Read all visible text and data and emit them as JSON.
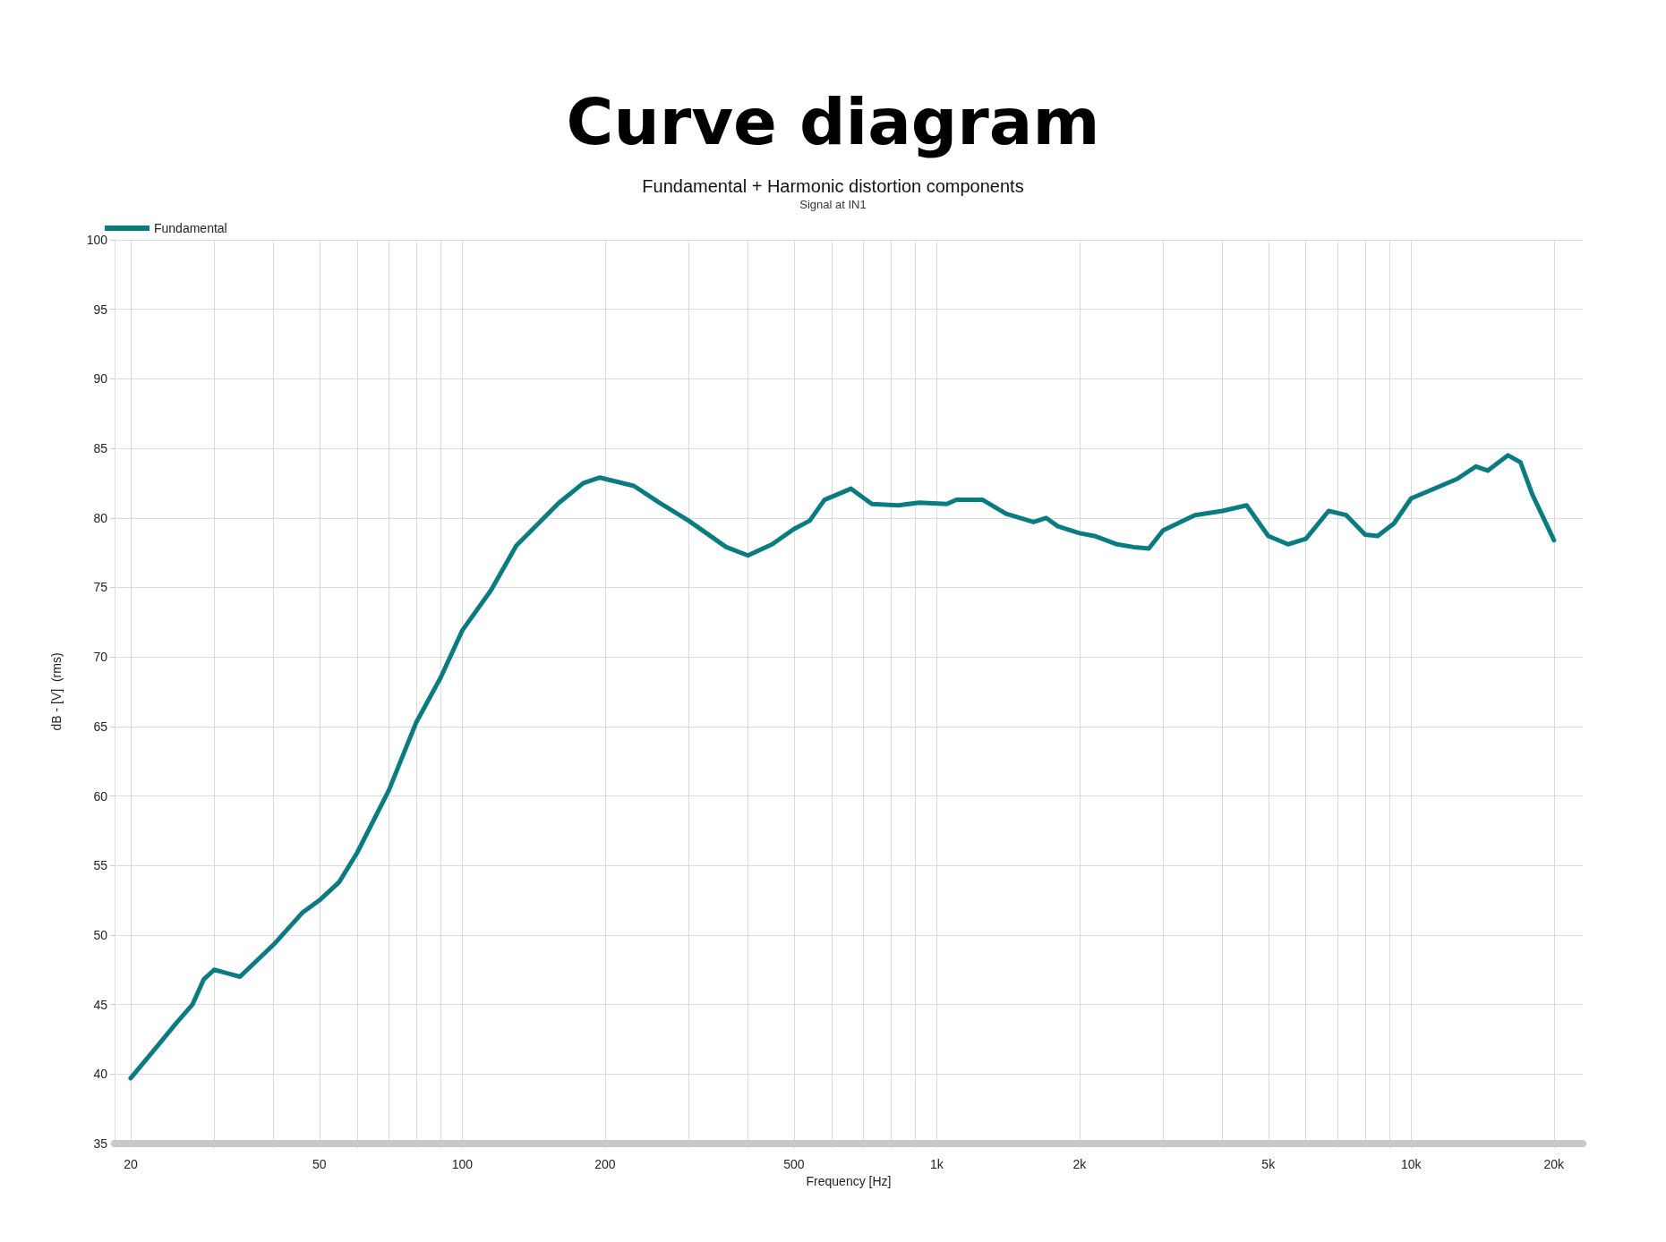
{
  "chart_data": {
    "type": "line",
    "title": "Curve diagram",
    "subtitle": "Fundamental + Harmonic distortion components",
    "annotations": [
      "Signal at IN1"
    ],
    "xlabel": "Frequency [Hz]",
    "ylabel": "dB - [V]  (rms)",
    "log": "x",
    "grid": true,
    "legend": "top left",
    "marker": "none",
    "line_style": "solid",
    "xlim": [
      18.5,
      23000
    ],
    "ylim": [
      35,
      100
    ],
    "xticks": [
      20,
      {
        "value": 30,
        "label": null
      },
      {
        "value": 40,
        "label": null
      },
      50,
      {
        "value": 60,
        "label": null
      },
      {
        "value": 70,
        "label": null
      },
      {
        "value": 80,
        "label": null
      },
      {
        "value": 90,
        "label": null
      },
      100,
      200,
      {
        "value": 300,
        "label": null
      },
      {
        "value": 400,
        "label": null
      },
      500,
      {
        "value": 600,
        "label": null
      },
      {
        "value": 700,
        "label": null
      },
      {
        "value": 800,
        "label": null
      },
      {
        "value": 900,
        "label": null
      },
      {
        "value": 1000,
        "label": "1k"
      },
      {
        "value": 2000,
        "label": "2k"
      },
      {
        "value": 3000,
        "label": null
      },
      {
        "value": 4000,
        "label": null
      },
      {
        "value": 5000,
        "label": "5k"
      },
      {
        "value": 6000,
        "label": null
      },
      {
        "value": 7000,
        "label": null
      },
      {
        "value": 8000,
        "label": null
      },
      {
        "value": 9000,
        "label": null
      },
      {
        "value": 10000,
        "label": "10k"
      },
      {
        "value": 20000,
        "label": "20k"
      }
    ],
    "yticks": [
      35,
      40,
      45,
      50,
      55,
      60,
      65,
      70,
      75,
      80,
      85,
      90,
      95,
      100
    ],
    "series": [
      {
        "name": "Fundamental",
        "color": "#0a7b80",
        "x": [
          20,
          22,
          25,
          27,
          28.5,
          30,
          34,
          40,
          46,
          50,
          55,
          60,
          70,
          80,
          90,
          100,
          115,
          130,
          160,
          180,
          195,
          230,
          260,
          300,
          360,
          400,
          450,
          500,
          540,
          580,
          660,
          730,
          830,
          920,
          1050,
          1100,
          1250,
          1400,
          1600,
          1700,
          1800,
          2000,
          2150,
          2400,
          2600,
          2800,
          3000,
          3500,
          4000,
          4500,
          5000,
          5500,
          6000,
          6700,
          7300,
          8000,
          8500,
          9200,
          10000,
          11000,
          12500,
          13700,
          14500,
          16000,
          17000,
          18000,
          20000
        ],
        "values": [
          39.7,
          41.4,
          43.7,
          45.0,
          46.8,
          47.5,
          47.0,
          49.3,
          51.6,
          52.5,
          53.8,
          55.9,
          60.4,
          65.3,
          68.5,
          71.9,
          74.8,
          78.0,
          81.1,
          82.5,
          82.9,
          82.3,
          81.1,
          79.8,
          77.9,
          77.3,
          78.1,
          79.2,
          79.8,
          81.3,
          82.1,
          81.0,
          80.9,
          81.1,
          81.0,
          81.3,
          81.3,
          80.3,
          79.7,
          80.0,
          79.4,
          78.9,
          78.7,
          78.1,
          77.9,
          77.8,
          79.1,
          80.2,
          80.5,
          80.9,
          78.7,
          78.1,
          78.5,
          80.5,
          80.2,
          78.8,
          78.7,
          79.6,
          81.4,
          82.0,
          82.8,
          83.7,
          83.4,
          84.5,
          84.0,
          81.7,
          78.4
        ]
      }
    ]
  }
}
